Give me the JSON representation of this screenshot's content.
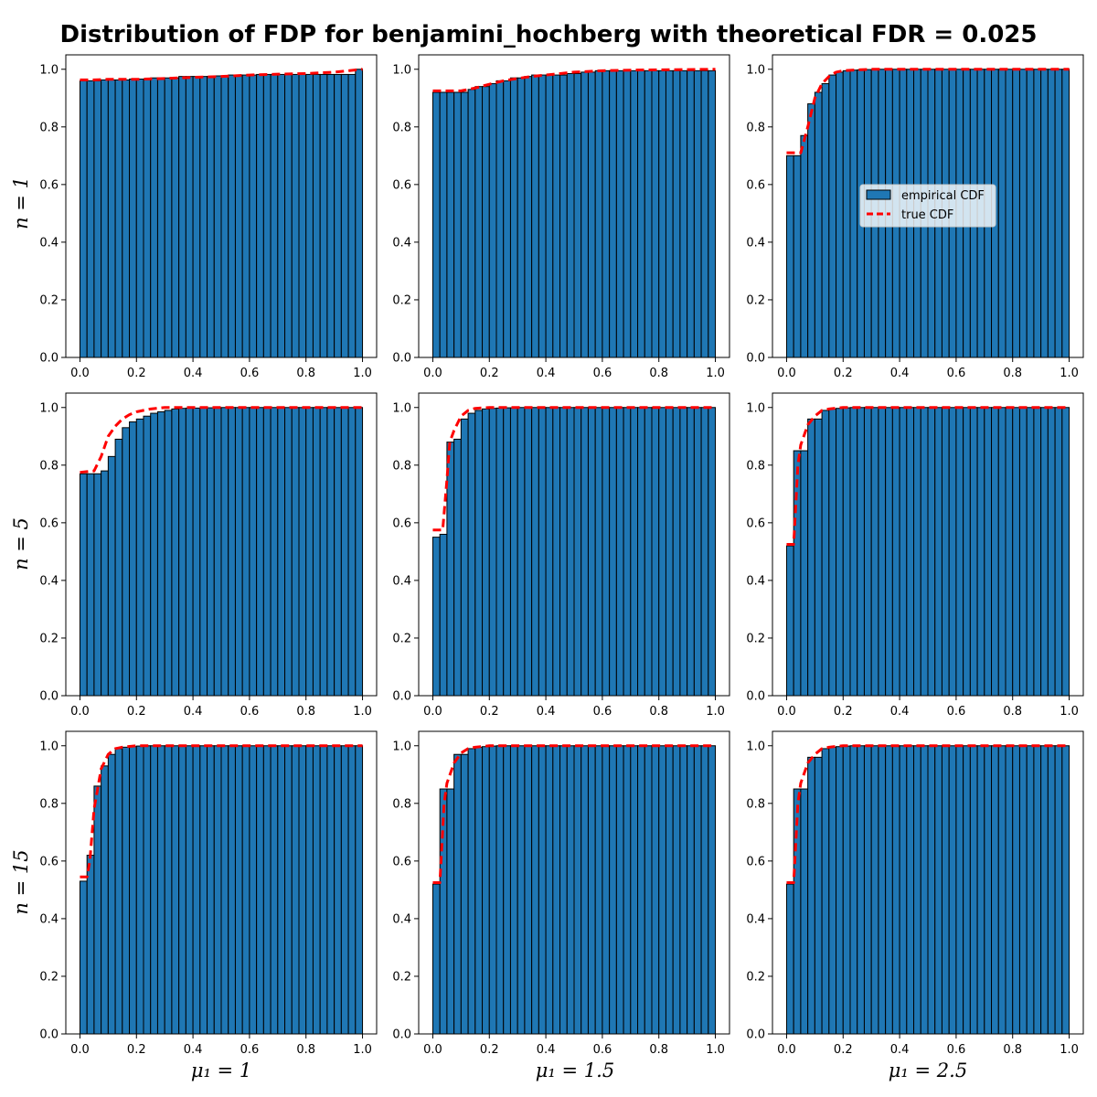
{
  "figure": {
    "title": "Distribution of FDP for benjamini_hochberg with theoretical FDR = 0.025",
    "row_labels": [
      "n = 1",
      "n = 5",
      "n = 15"
    ],
    "col_labels": [
      "μ₁ = 1",
      "μ₁ = 1.5",
      "μ₁ = 2.5"
    ],
    "legend": {
      "empirical_label": "empirical CDF",
      "true_label": "true CDF",
      "placement": "right-center of top-right panel"
    },
    "colors": {
      "bar_fill": "#1f77b4",
      "bar_edge": "#000000",
      "true_line": "#ff0000",
      "axis": "#000000"
    }
  },
  "chart_data": [
    {
      "type": "bar",
      "row": 0,
      "col": 0,
      "bins": 40,
      "xlim": [
        -0.05,
        1.05
      ],
      "ylim": [
        0,
        1.05
      ],
      "xticks": [
        0.0,
        0.2,
        0.4,
        0.6,
        0.8,
        1.0
      ],
      "yticks": [
        0.0,
        0.2,
        0.4,
        0.6,
        0.8,
        1.0
      ],
      "tick_labels_x": [
        "0.0",
        "0.2",
        "0.4",
        "0.6",
        "0.8",
        "1.0"
      ],
      "tick_labels_y": [
        "0.0",
        "0.2",
        "0.4",
        "0.6",
        "0.8",
        "1.0"
      ],
      "empirical": [
        0.96,
        0.96,
        0.96,
        0.963,
        0.963,
        0.963,
        0.963,
        0.966,
        0.966,
        0.966,
        0.97,
        0.97,
        0.97,
        0.97,
        0.975,
        0.975,
        0.975,
        0.975,
        0.975,
        0.977,
        0.977,
        0.98,
        0.98,
        0.98,
        0.98,
        0.982,
        0.982,
        0.982,
        0.982,
        0.982,
        0.982,
        0.982,
        0.982,
        0.982,
        0.982,
        0.982,
        0.982,
        0.982,
        0.982,
        1.0
      ],
      "true_x": [
        0.0,
        0.05,
        0.1,
        0.2,
        0.3,
        0.4,
        0.5,
        0.6,
        0.7,
        0.8,
        0.9,
        0.95,
        1.0
      ],
      "true_y": [
        0.963,
        0.963,
        0.965,
        0.965,
        0.968,
        0.972,
        0.975,
        0.98,
        0.983,
        0.985,
        0.99,
        0.995,
        1.0
      ]
    },
    {
      "type": "bar",
      "row": 0,
      "col": 1,
      "bins": 40,
      "xlim": [
        -0.05,
        1.05
      ],
      "ylim": [
        0,
        1.05
      ],
      "xticks": [
        0.0,
        0.2,
        0.4,
        0.6,
        0.8,
        1.0
      ],
      "yticks": [
        0.0,
        0.2,
        0.4,
        0.6,
        0.8,
        1.0
      ],
      "tick_labels_x": [
        "0.0",
        "0.2",
        "0.4",
        "0.6",
        "0.8",
        "1.0"
      ],
      "tick_labels_y": [
        "0.0",
        "0.2",
        "0.4",
        "0.6",
        "0.8",
        "1.0"
      ],
      "empirical": [
        0.92,
        0.92,
        0.92,
        0.92,
        0.92,
        0.93,
        0.94,
        0.94,
        0.95,
        0.96,
        0.96,
        0.97,
        0.97,
        0.975,
        0.98,
        0.98,
        0.98,
        0.98,
        0.98,
        0.985,
        0.985,
        0.99,
        0.99,
        0.995,
        0.995,
        0.995,
        0.995,
        0.995,
        0.995,
        0.995,
        0.995,
        0.995,
        0.995,
        0.995,
        0.995,
        0.995,
        0.995,
        0.995,
        0.995,
        0.995
      ],
      "true_x": [
        0.0,
        0.1,
        0.15,
        0.2,
        0.25,
        0.3,
        0.35,
        0.4,
        0.5,
        0.6,
        0.7,
        1.0
      ],
      "true_y": [
        0.925,
        0.925,
        0.935,
        0.948,
        0.96,
        0.968,
        0.975,
        0.98,
        0.99,
        0.995,
        0.997,
        1.0
      ]
    },
    {
      "type": "bar",
      "row": 0,
      "col": 2,
      "bins": 40,
      "xlim": [
        -0.05,
        1.05
      ],
      "ylim": [
        0,
        1.05
      ],
      "xticks": [
        0.0,
        0.2,
        0.4,
        0.6,
        0.8,
        1.0
      ],
      "yticks": [
        0.0,
        0.2,
        0.4,
        0.6,
        0.8,
        1.0
      ],
      "tick_labels_x": [
        "0.0",
        "0.2",
        "0.4",
        "0.6",
        "0.8",
        "1.0"
      ],
      "tick_labels_y": [
        "0.0",
        "0.2",
        "0.4",
        "0.6",
        "0.8",
        "1.0"
      ],
      "empirical": [
        0.7,
        0.7,
        0.77,
        0.88,
        0.92,
        0.95,
        0.98,
        0.99,
        0.995,
        0.997,
        0.998,
        0.999,
        0.999,
        1.0,
        1.0,
        1.0,
        1.0,
        1.0,
        1.0,
        1.0,
        1.0,
        1.0,
        1.0,
        1.0,
        1.0,
        1.0,
        1.0,
        1.0,
        1.0,
        1.0,
        1.0,
        1.0,
        1.0,
        1.0,
        1.0,
        1.0,
        1.0,
        1.0,
        1.0,
        1.0
      ],
      "true_x": [
        0.0,
        0.05,
        0.075,
        0.1,
        0.125,
        0.15,
        0.175,
        0.2,
        0.25,
        0.3,
        1.0
      ],
      "true_y": [
        0.71,
        0.71,
        0.8,
        0.9,
        0.95,
        0.975,
        0.99,
        0.995,
        0.998,
        1.0,
        1.0
      ]
    },
    {
      "type": "bar",
      "row": 1,
      "col": 0,
      "bins": 40,
      "xlim": [
        -0.05,
        1.05
      ],
      "ylim": [
        0,
        1.05
      ],
      "xticks": [
        0.0,
        0.2,
        0.4,
        0.6,
        0.8,
        1.0
      ],
      "yticks": [
        0.0,
        0.2,
        0.4,
        0.6,
        0.8,
        1.0
      ],
      "tick_labels_x": [
        "0.0",
        "0.2",
        "0.4",
        "0.6",
        "0.8",
        "1.0"
      ],
      "tick_labels_y": [
        "0.0",
        "0.2",
        "0.4",
        "0.6",
        "0.8",
        "1.0"
      ],
      "empirical": [
        0.77,
        0.77,
        0.77,
        0.78,
        0.83,
        0.89,
        0.93,
        0.95,
        0.96,
        0.97,
        0.98,
        0.985,
        0.99,
        0.995,
        0.997,
        0.998,
        0.998,
        0.999,
        0.999,
        0.999,
        1.0,
        1.0,
        1.0,
        1.0,
        1.0,
        1.0,
        1.0,
        1.0,
        1.0,
        1.0,
        1.0,
        1.0,
        1.0,
        1.0,
        1.0,
        1.0,
        1.0,
        1.0,
        1.0,
        1.0
      ],
      "true_x": [
        0.0,
        0.05,
        0.075,
        0.1,
        0.125,
        0.15,
        0.175,
        0.2,
        0.25,
        0.3,
        1.0
      ],
      "true_y": [
        0.775,
        0.78,
        0.83,
        0.9,
        0.935,
        0.96,
        0.975,
        0.985,
        0.995,
        1.0,
        1.0
      ]
    },
    {
      "type": "bar",
      "row": 1,
      "col": 1,
      "bins": 40,
      "xlim": [
        -0.05,
        1.05
      ],
      "ylim": [
        0,
        1.05
      ],
      "xticks": [
        0.0,
        0.2,
        0.4,
        0.6,
        0.8,
        1.0
      ],
      "yticks": [
        0.0,
        0.2,
        0.4,
        0.6,
        0.8,
        1.0
      ],
      "tick_labels_x": [
        "0.0",
        "0.2",
        "0.4",
        "0.6",
        "0.8",
        "1.0"
      ],
      "tick_labels_y": [
        "0.0",
        "0.2",
        "0.4",
        "0.6",
        "0.8",
        "1.0"
      ],
      "empirical": [
        0.55,
        0.56,
        0.88,
        0.89,
        0.96,
        0.98,
        0.99,
        0.995,
        0.997,
        0.998,
        0.999,
        0.999,
        1.0,
        1.0,
        1.0,
        1.0,
        1.0,
        1.0,
        1.0,
        1.0,
        1.0,
        1.0,
        1.0,
        1.0,
        1.0,
        1.0,
        1.0,
        1.0,
        1.0,
        1.0,
        1.0,
        1.0,
        1.0,
        1.0,
        1.0,
        1.0,
        1.0,
        1.0,
        1.0,
        1.0
      ],
      "true_x": [
        0.0,
        0.035,
        0.05,
        0.06,
        0.075,
        0.1,
        0.125,
        0.15,
        0.2,
        1.0
      ],
      "true_y": [
        0.575,
        0.575,
        0.75,
        0.88,
        0.92,
        0.97,
        0.99,
        0.997,
        1.0,
        1.0
      ]
    },
    {
      "type": "bar",
      "row": 1,
      "col": 2,
      "bins": 40,
      "xlim": [
        -0.05,
        1.05
      ],
      "ylim": [
        0,
        1.05
      ],
      "xticks": [
        0.0,
        0.2,
        0.4,
        0.6,
        0.8,
        1.0
      ],
      "yticks": [
        0.0,
        0.2,
        0.4,
        0.6,
        0.8,
        1.0
      ],
      "tick_labels_x": [
        "0.0",
        "0.2",
        "0.4",
        "0.6",
        "0.8",
        "1.0"
      ],
      "tick_labels_y": [
        "0.0",
        "0.2",
        "0.4",
        "0.6",
        "0.8",
        "1.0"
      ],
      "empirical": [
        0.52,
        0.85,
        0.85,
        0.96,
        0.96,
        0.99,
        0.995,
        0.997,
        0.999,
        1.0,
        1.0,
        1.0,
        1.0,
        1.0,
        1.0,
        1.0,
        1.0,
        1.0,
        1.0,
        1.0,
        1.0,
        1.0,
        1.0,
        1.0,
        1.0,
        1.0,
        1.0,
        1.0,
        1.0,
        1.0,
        1.0,
        1.0,
        1.0,
        1.0,
        1.0,
        1.0,
        1.0,
        1.0,
        1.0,
        1.0
      ],
      "true_x": [
        0.0,
        0.025,
        0.04,
        0.05,
        0.075,
        0.1,
        0.125,
        0.15,
        0.2,
        1.0
      ],
      "true_y": [
        0.525,
        0.525,
        0.8,
        0.87,
        0.94,
        0.97,
        0.99,
        0.995,
        1.0,
        1.0
      ]
    },
    {
      "type": "bar",
      "row": 2,
      "col": 0,
      "bins": 40,
      "xlim": [
        -0.05,
        1.05
      ],
      "ylim": [
        0,
        1.05
      ],
      "xticks": [
        0.0,
        0.2,
        0.4,
        0.6,
        0.8,
        1.0
      ],
      "yticks": [
        0.0,
        0.2,
        0.4,
        0.6,
        0.8,
        1.0
      ],
      "tick_labels_x": [
        "0.0",
        "0.2",
        "0.4",
        "0.6",
        "0.8",
        "1.0"
      ],
      "tick_labels_y": [
        "0.0",
        "0.2",
        "0.4",
        "0.6",
        "0.8",
        "1.0"
      ],
      "empirical": [
        0.53,
        0.62,
        0.86,
        0.93,
        0.97,
        0.99,
        0.995,
        0.997,
        0.999,
        1.0,
        1.0,
        1.0,
        1.0,
        1.0,
        1.0,
        1.0,
        1.0,
        1.0,
        1.0,
        1.0,
        1.0,
        1.0,
        1.0,
        1.0,
        1.0,
        1.0,
        1.0,
        1.0,
        1.0,
        1.0,
        1.0,
        1.0,
        1.0,
        1.0,
        1.0,
        1.0,
        1.0,
        1.0,
        1.0,
        1.0
      ],
      "true_x": [
        0.0,
        0.025,
        0.035,
        0.05,
        0.075,
        0.1,
        0.125,
        0.15,
        0.2,
        1.0
      ],
      "true_y": [
        0.545,
        0.545,
        0.6,
        0.78,
        0.92,
        0.97,
        0.99,
        0.995,
        1.0,
        1.0
      ]
    },
    {
      "type": "bar",
      "row": 2,
      "col": 1,
      "bins": 40,
      "xlim": [
        -0.05,
        1.05
      ],
      "ylim": [
        0,
        1.05
      ],
      "xticks": [
        0.0,
        0.2,
        0.4,
        0.6,
        0.8,
        1.0
      ],
      "yticks": [
        0.0,
        0.2,
        0.4,
        0.6,
        0.8,
        1.0
      ],
      "tick_labels_x": [
        "0.0",
        "0.2",
        "0.4",
        "0.6",
        "0.8",
        "1.0"
      ],
      "tick_labels_y": [
        "0.0",
        "0.2",
        "0.4",
        "0.6",
        "0.8",
        "1.0"
      ],
      "empirical": [
        0.52,
        0.85,
        0.85,
        0.97,
        0.97,
        0.99,
        0.995,
        0.997,
        0.999,
        1.0,
        1.0,
        1.0,
        1.0,
        1.0,
        1.0,
        1.0,
        1.0,
        1.0,
        1.0,
        1.0,
        1.0,
        1.0,
        1.0,
        1.0,
        1.0,
        1.0,
        1.0,
        1.0,
        1.0,
        1.0,
        1.0,
        1.0,
        1.0,
        1.0,
        1.0,
        1.0,
        1.0,
        1.0,
        1.0,
        1.0
      ],
      "true_x": [
        0.0,
        0.025,
        0.04,
        0.05,
        0.075,
        0.1,
        0.125,
        0.15,
        0.2,
        1.0
      ],
      "true_y": [
        0.525,
        0.525,
        0.8,
        0.87,
        0.94,
        0.975,
        0.99,
        0.995,
        1.0,
        1.0
      ]
    },
    {
      "type": "bar",
      "row": 2,
      "col": 2,
      "bins": 40,
      "xlim": [
        -0.05,
        1.05
      ],
      "ylim": [
        0,
        1.05
      ],
      "xticks": [
        0.0,
        0.2,
        0.4,
        0.6,
        0.8,
        1.0
      ],
      "yticks": [
        0.0,
        0.2,
        0.4,
        0.6,
        0.8,
        1.0
      ],
      "tick_labels_x": [
        "0.0",
        "0.2",
        "0.4",
        "0.6",
        "0.8",
        "1.0"
      ],
      "tick_labels_y": [
        "0.0",
        "0.2",
        "0.4",
        "0.6",
        "0.8",
        "1.0"
      ],
      "empirical": [
        0.52,
        0.85,
        0.85,
        0.96,
        0.96,
        0.99,
        0.995,
        0.997,
        0.999,
        1.0,
        1.0,
        1.0,
        1.0,
        1.0,
        1.0,
        1.0,
        1.0,
        1.0,
        1.0,
        1.0,
        1.0,
        1.0,
        1.0,
        1.0,
        1.0,
        1.0,
        1.0,
        1.0,
        1.0,
        1.0,
        1.0,
        1.0,
        1.0,
        1.0,
        1.0,
        1.0,
        1.0,
        1.0,
        1.0,
        1.0
      ],
      "true_x": [
        0.0,
        0.025,
        0.04,
        0.05,
        0.075,
        0.1,
        0.125,
        0.15,
        0.2,
        1.0
      ],
      "true_y": [
        0.525,
        0.525,
        0.8,
        0.87,
        0.94,
        0.97,
        0.99,
        0.995,
        1.0,
        1.0
      ]
    }
  ]
}
